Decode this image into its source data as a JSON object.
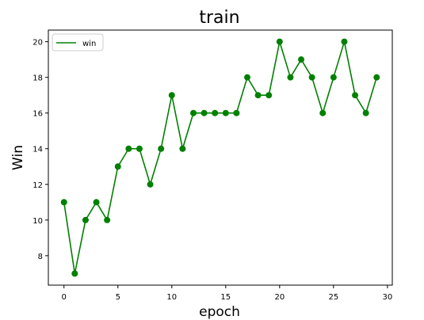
{
  "chart_data": {
    "type": "line",
    "title": "train",
    "xlabel": "epoch",
    "ylabel": "Win",
    "xlim": [
      -1.45,
      30.45
    ],
    "ylim": [
      6.35,
      20.65
    ],
    "xticks": [
      0,
      5,
      10,
      15,
      20,
      25,
      30
    ],
    "yticks": [
      8,
      10,
      12,
      14,
      16,
      18,
      20
    ],
    "grid": false,
    "legend_position": "upper-left",
    "series": [
      {
        "name": "win",
        "color": "#008000",
        "marker": "circle",
        "x": [
          0,
          1,
          2,
          3,
          4,
          5,
          6,
          7,
          8,
          9,
          10,
          11,
          12,
          13,
          14,
          15,
          16,
          17,
          18,
          19,
          20,
          21,
          22,
          23,
          24,
          25,
          26,
          27,
          28,
          29
        ],
        "y": [
          11,
          7,
          10,
          11,
          10,
          13,
          14,
          14,
          12,
          14,
          17,
          14,
          16,
          16,
          16,
          16,
          16,
          18,
          17,
          17,
          20,
          18,
          19,
          18,
          16,
          18,
          20,
          17,
          16,
          18
        ]
      }
    ]
  }
}
